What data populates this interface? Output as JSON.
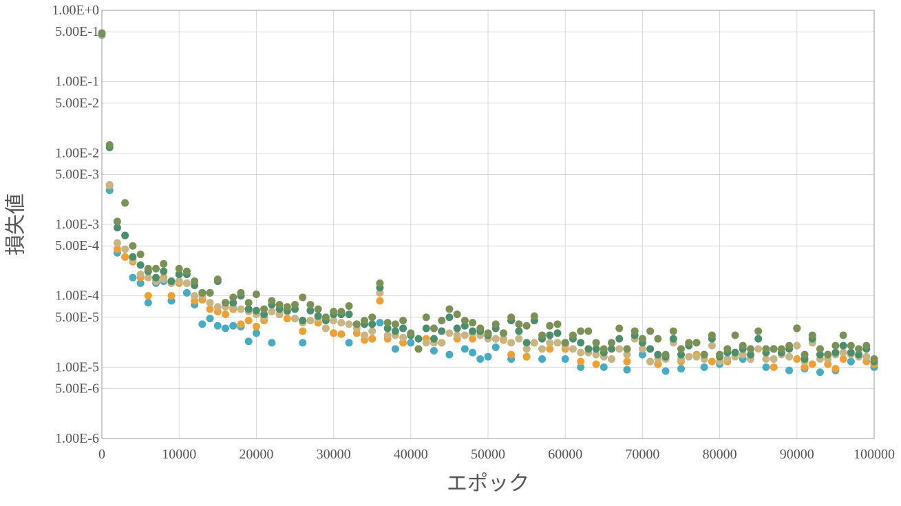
{
  "chart_data": {
    "type": "scatter",
    "title": "",
    "xlabel": "エポック",
    "ylabel": "損失値",
    "x_scale": "linear",
    "y_scale": "log10",
    "xlim": [
      0,
      100000
    ],
    "ylim": [
      1e-06,
      1
    ],
    "x_ticks": [
      0,
      10000,
      20000,
      30000,
      40000,
      50000,
      60000,
      70000,
      80000,
      90000,
      100000
    ],
    "x_tick_labels": [
      "0",
      "10000",
      "20000",
      "30000",
      "40000",
      "50000",
      "60000",
      "70000",
      "80000",
      "90000",
      "100000"
    ],
    "y_ticks": [
      1,
      0.5,
      0.1,
      0.05,
      0.01,
      0.005,
      0.001,
      0.0005,
      0.0001,
      5e-05,
      1e-05,
      5e-06,
      1e-06
    ],
    "y_tick_labels": [
      "1.00E+0",
      "5.00E-1",
      "1.00E-1",
      "5.00E-2",
      "1.00E-2",
      "5.00E-3",
      "1.00E-3",
      "5.00E-4",
      "1.00E-4",
      "5.00E-5",
      "1.00E-5",
      "5.00E-6",
      "1.00E-6"
    ],
    "grid": true,
    "legend": "none",
    "series": [
      {
        "color": "#45acc4",
        "x": [
          0,
          1000,
          2000,
          3000,
          4000,
          5000,
          6000,
          7000,
          8000,
          9000,
          10000,
          11000,
          12000,
          13000,
          14000,
          15000,
          16000,
          17000,
          18000,
          19000,
          20000,
          22000,
          25000,
          26000,
          28000,
          30000,
          32000,
          35000,
          36000,
          38000,
          40000,
          43000,
          45000,
          47000,
          48000,
          49000,
          50000,
          51000,
          53000,
          55000,
          57000,
          60000,
          62000,
          65000,
          68000,
          70000,
          72000,
          73000,
          75000,
          78000,
          80000,
          83000,
          86000,
          89000,
          91000,
          93000,
          95000,
          97000,
          100000
        ],
        "y": [
          0.45,
          0.003,
          0.0004,
          0.00035,
          0.00018,
          0.00015,
          8e-05,
          0.00015,
          0.00016,
          8.5e-05,
          0.00016,
          0.00011,
          7.5e-05,
          4e-05,
          4.8e-05,
          3.8e-05,
          3.5e-05,
          3.8e-05,
          3.7e-05,
          2.3e-05,
          3e-05,
          2.2e-05,
          4.8e-05,
          2.2e-05,
          4.2e-05,
          3e-05,
          2.2e-05,
          2.5e-05,
          4.2e-05,
          1.8e-05,
          2.2e-05,
          1.7e-05,
          1.5e-05,
          1.8e-05,
          1.6e-05,
          1.3e-05,
          1.4e-05,
          1.9e-05,
          1.3e-05,
          1.4e-05,
          1.3e-05,
          1.3e-05,
          1e-05,
          1e-05,
          9.2e-06,
          1.5e-05,
          1.1e-05,
          8.8e-06,
          9.5e-06,
          1e-05,
          1.1e-05,
          1.3e-05,
          1e-05,
          9e-06,
          9.5e-06,
          8.5e-06,
          9e-06,
          1.2e-05,
          1e-05
        ]
      },
      {
        "color": "#f0a030",
        "x": [
          0,
          1000,
          2000,
          3000,
          4000,
          5000,
          6000,
          7000,
          8000,
          9000,
          10000,
          11000,
          12000,
          13000,
          14000,
          15000,
          16000,
          17000,
          18000,
          19000,
          20000,
          21000,
          22000,
          23000,
          24000,
          26000,
          28000,
          30000,
          31000,
          33000,
          34000,
          35000,
          36000,
          37000,
          39000,
          42000,
          44000,
          46000,
          48000,
          50000,
          51000,
          52000,
          53000,
          55000,
          56000,
          58000,
          60000,
          62000,
          64000,
          66000,
          68000,
          71000,
          72000,
          75000,
          77000,
          79000,
          81000,
          84000,
          87000,
          90000,
          91000,
          92000,
          94000,
          95000,
          96000,
          99000,
          100000
        ],
        "y": [
          0.46,
          0.0035,
          0.00045,
          0.00035,
          0.0003,
          0.00018,
          0.0001,
          0.00016,
          0.00018,
          0.0001,
          0.00015,
          0.00015,
          8.5e-05,
          8.8e-05,
          6.5e-05,
          6e-05,
          5.5e-05,
          6.5e-05,
          4e-05,
          4.5e-05,
          3.7e-05,
          4.5e-05,
          6e-05,
          5.5e-05,
          4.8e-05,
          3.2e-05,
          4.2e-05,
          3e-05,
          2.9e-05,
          3e-05,
          2.4e-05,
          2.5e-05,
          8.5e-05,
          2.5e-05,
          2.2e-05,
          2.5e-05,
          2.2e-05,
          2.5e-05,
          2.5e-05,
          2.8e-05,
          2.5e-05,
          2.4e-05,
          1.5e-05,
          1.4e-05,
          2.2e-05,
          1.8e-05,
          1.8e-05,
          1.2e-05,
          1.1e-05,
          1.3e-05,
          1.2e-05,
          1.2e-05,
          1.1e-05,
          1.2e-05,
          1.5e-05,
          1.2e-05,
          1.2e-05,
          1.3e-05,
          1e-05,
          1.3e-05,
          1e-05,
          1.1e-05,
          1.1e-05,
          9.5e-06,
          1.3e-05,
          1.2e-05,
          1.1e-05
        ]
      },
      {
        "color": "#c9b483",
        "x": [
          0,
          1000,
          2000,
          3000,
          4000,
          5000,
          6000,
          7000,
          8000,
          9000,
          10000,
          11000,
          12000,
          13000,
          14000,
          15000,
          16000,
          17000,
          18000,
          19000,
          20000,
          21000,
          22000,
          23000,
          24000,
          25000,
          26000,
          27000,
          28000,
          29000,
          30000,
          31000,
          32000,
          33000,
          34000,
          35000,
          36000,
          37000,
          38000,
          39000,
          40000,
          41000,
          42000,
          43000,
          44000,
          45000,
          46000,
          47000,
          48000,
          49000,
          50000,
          51000,
          52000,
          53000,
          54000,
          55000,
          56000,
          57000,
          58000,
          59000,
          60000,
          61000,
          62000,
          63000,
          64000,
          65000,
          66000,
          67000,
          68000,
          69000,
          70000,
          71000,
          72000,
          73000,
          74000,
          75000,
          76000,
          77000,
          78000,
          79000,
          80000,
          81000,
          82000,
          83000,
          84000,
          85000,
          86000,
          87000,
          88000,
          89000,
          90000,
          91000,
          92000,
          93000,
          94000,
          95000,
          96000,
          97000,
          98000,
          99000,
          100000
        ],
        "y": [
          0.46,
          0.0036,
          0.00055,
          0.00045,
          0.00032,
          0.0002,
          0.00018,
          0.00016,
          0.00017,
          0.00015,
          0.00016,
          0.00015,
          0.0001,
          0.0001,
          8e-05,
          7e-05,
          7e-05,
          7e-05,
          6.5e-05,
          6e-05,
          5.5e-05,
          5e-05,
          6e-05,
          5.5e-05,
          6e-05,
          4.8e-05,
          4.2e-05,
          4.5e-05,
          4.8e-05,
          3.5e-05,
          4.5e-05,
          4.2e-05,
          4e-05,
          3.5e-05,
          2.8e-05,
          3.2e-05,
          0.00011,
          2.8e-05,
          2.8e-05,
          2.6e-05,
          2.8e-05,
          1.8e-05,
          2.2e-05,
          2.2e-05,
          2.2e-05,
          3e-05,
          2.8e-05,
          2.8e-05,
          3e-05,
          2.8e-05,
          2.5e-05,
          2.5e-05,
          2.5e-05,
          2.2e-05,
          2.5e-05,
          1.8e-05,
          2.2e-05,
          1.8e-05,
          2.2e-05,
          2.2e-05,
          2e-05,
          1.8e-05,
          1.6e-05,
          1.6e-05,
          1.5e-05,
          1.4e-05,
          1.3e-05,
          1.8e-05,
          1.5e-05,
          2.5e-05,
          1.8e-05,
          1.2e-05,
          1.3e-05,
          1.3e-05,
          2.2e-05,
          1.3e-05,
          1.4e-05,
          1.4e-05,
          1.3e-05,
          2e-05,
          1.2e-05,
          1.3e-05,
          1.4e-05,
          1.5e-05,
          1.3e-05,
          1.8e-05,
          1.3e-05,
          1.3e-05,
          1.5e-05,
          1.4e-05,
          2e-05,
          1.2e-05,
          2.2e-05,
          1.3e-05,
          1.3e-05,
          1.5e-05,
          1.6e-05,
          1.5e-05,
          1.4e-05,
          1.4e-05,
          1.2e-05
        ]
      },
      {
        "color": "#4a8f6c",
        "x": [
          0,
          1000,
          2000,
          3000,
          4000,
          5000,
          6000,
          7000,
          8000,
          9000,
          10000,
          11000,
          12000,
          13000,
          14000,
          15000,
          16000,
          17000,
          18000,
          19000,
          20000,
          21000,
          22000,
          23000,
          24000,
          25000,
          26000,
          27000,
          28000,
          29000,
          30000,
          31000,
          32000,
          33000,
          34000,
          35000,
          36000,
          37000,
          38000,
          39000,
          40000,
          41000,
          42000,
          43000,
          44000,
          45000,
          46000,
          47000,
          48000,
          49000,
          50000,
          51000,
          52000,
          53000,
          54000,
          55000,
          56000,
          57000,
          58000,
          59000,
          60000,
          61000,
          62000,
          63000,
          64000,
          65000,
          66000,
          67000,
          68000,
          69000,
          70000,
          71000,
          72000,
          73000,
          74000,
          75000,
          76000,
          77000,
          78000,
          79000,
          80000,
          81000,
          82000,
          83000,
          84000,
          85000,
          86000,
          87000,
          88000,
          89000,
          90000,
          91000,
          92000,
          93000,
          94000,
          95000,
          96000,
          97000,
          98000,
          99000,
          100000
        ],
        "y": [
          0.47,
          0.012,
          0.0009,
          0.0007,
          0.00035,
          0.00027,
          0.00022,
          0.00018,
          0.00022,
          0.00016,
          0.0002,
          0.0002,
          0.00014,
          0.00011,
          0.00011,
          0.00016,
          8e-05,
          8e-05,
          0.0001,
          6.5e-05,
          6.2e-05,
          5.5e-05,
          7.5e-05,
          6.5e-05,
          6.2e-05,
          6.5e-05,
          4.5e-05,
          6.2e-05,
          5.2e-05,
          4.5e-05,
          5.5e-05,
          5.5e-05,
          5.5e-05,
          4e-05,
          4e-05,
          4e-05,
          0.00013,
          3.5e-05,
          3.2e-05,
          3.5e-05,
          2.8e-05,
          2.5e-05,
          3.5e-05,
          2.5e-05,
          3.2e-05,
          5e-05,
          3.5e-05,
          3.8e-05,
          3.2e-05,
          3.2e-05,
          2.8e-05,
          3.5e-05,
          3e-05,
          4.5e-05,
          3.2e-05,
          2.2e-05,
          4.5e-05,
          2.5e-05,
          2.8e-05,
          3e-05,
          2.2e-05,
          2.5e-05,
          2.2e-05,
          1.8e-05,
          1.8e-05,
          1.6e-05,
          1.8e-05,
          2.5e-05,
          1.8e-05,
          2.8e-05,
          2.2e-05,
          1.8e-05,
          1.5e-05,
          1.4e-05,
          2.5e-05,
          1.5e-05,
          2e-05,
          2.2e-05,
          1.5e-05,
          2.5e-05,
          1.4e-05,
          1.6e-05,
          1.6e-05,
          1.8e-05,
          1.5e-05,
          2.5e-05,
          1.6e-05,
          1.8e-05,
          1.6e-05,
          1.8e-05,
          3.5e-05,
          1.3e-05,
          2.5e-05,
          1.5e-05,
          1.5e-05,
          1.6e-05,
          2e-05,
          1.6e-05,
          1.5e-05,
          1.8e-05,
          1.2e-05
        ]
      },
      {
        "color": "#7a9155",
        "x": [
          0,
          1000,
          2000,
          3000,
          4000,
          5000,
          6000,
          7000,
          8000,
          10000,
          11000,
          12000,
          13000,
          14000,
          15000,
          16000,
          17000,
          18000,
          19000,
          20000,
          21000,
          22000,
          23000,
          24000,
          25000,
          26000,
          27000,
          28000,
          29000,
          30000,
          31000,
          32000,
          33000,
          34000,
          35000,
          36000,
          37000,
          38000,
          39000,
          40000,
          41000,
          42000,
          43000,
          44000,
          45000,
          46000,
          47000,
          48000,
          49000,
          50000,
          51000,
          52000,
          53000,
          54000,
          55000,
          56000,
          57000,
          58000,
          59000,
          60000,
          61000,
          62000,
          63000,
          64000,
          65000,
          66000,
          67000,
          68000,
          69000,
          70000,
          71000,
          72000,
          73000,
          74000,
          75000,
          76000,
          77000,
          78000,
          79000,
          80000,
          81000,
          82000,
          83000,
          84000,
          85000,
          86000,
          87000,
          88000,
          89000,
          90000,
          91000,
          92000,
          93000,
          94000,
          95000,
          96000,
          97000,
          98000,
          99000,
          100000
        ],
        "y": [
          0.48,
          0.013,
          0.0011,
          0.002,
          0.0005,
          0.00038,
          0.00024,
          0.00024,
          0.00028,
          0.00024,
          0.00022,
          0.00016,
          0.00011,
          0.00011,
          0.00017,
          8e-05,
          9.5e-05,
          0.00011,
          8e-05,
          0.000105,
          6.5e-05,
          8.5e-05,
          7.5e-05,
          7e-05,
          7.5e-05,
          9.5e-05,
          7.5e-05,
          6.5e-05,
          5e-05,
          6e-05,
          6e-05,
          7.2e-05,
          4e-05,
          4.5e-05,
          5e-05,
          0.00015,
          4.2e-05,
          4e-05,
          4.5e-05,
          3e-05,
          1.8e-05,
          5e-05,
          3.5e-05,
          4.5e-05,
          6.5e-05,
          5.5e-05,
          4.5e-05,
          4.2e-05,
          3.5e-05,
          3e-05,
          4e-05,
          3e-05,
          5e-05,
          4e-05,
          3.8e-05,
          5.2e-05,
          2.8e-05,
          3.8e-05,
          4e-05,
          2.2e-05,
          2.8e-05,
          3.2e-05,
          3.2e-05,
          2.2e-05,
          1.8e-05,
          2.2e-05,
          3.5e-05,
          1.8e-05,
          3.2e-05,
          2.5e-05,
          3.2e-05,
          2.5e-05,
          1.5e-05,
          3.2e-05,
          1.8e-05,
          2.2e-05,
          2.2e-05,
          1.5e-05,
          2.8e-05,
          1.5e-05,
          1.8e-05,
          2.8e-05,
          2e-05,
          1.8e-05,
          3.2e-05,
          1.8e-05,
          1.8e-05,
          1.8e-05,
          2e-05,
          3.5e-05,
          1.5e-05,
          2.8e-05,
          1.8e-05,
          1.5e-05,
          2e-05,
          2.8e-05,
          2e-05,
          1.8e-05,
          2e-05,
          1.3e-05
        ]
      }
    ]
  }
}
